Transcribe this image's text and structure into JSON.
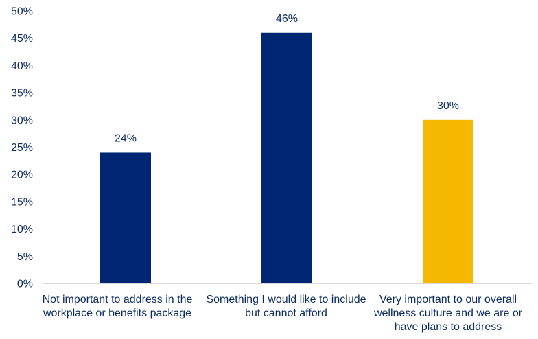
{
  "chart_data": {
    "type": "bar",
    "categories": [
      "Not important to address in the workplace or benefits package",
      "Something I would like to include but cannot afford",
      "Very important to our overall wellness culture and we are or have plans to address"
    ],
    "values": [
      24,
      46,
      30
    ],
    "data_labels": [
      "24%",
      "46%",
      "30%"
    ],
    "bar_colors": [
      "#002673",
      "#002673",
      "#f5b700"
    ],
    "y_ticks": [
      "0%",
      "5%",
      "10%",
      "15%",
      "20%",
      "25%",
      "30%",
      "35%",
      "40%",
      "45%",
      "50%"
    ],
    "ylim": [
      0,
      50
    ],
    "grid": false,
    "legend": "none",
    "colors": {
      "primary_bar": "#002673",
      "highlight_bar": "#f5b700",
      "axis_text": "#0d2b5e",
      "baseline": "#d9d9d9"
    }
  }
}
